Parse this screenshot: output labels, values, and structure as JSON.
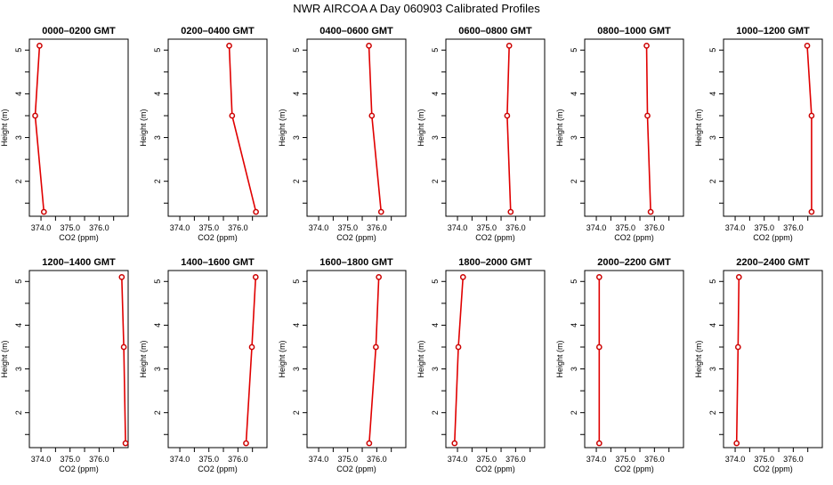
{
  "title": "NWR AIRCOA A  Day 060903  Calibrated Profiles",
  "chart_data": [
    {
      "type": "line",
      "title": "0000–0200 GMT",
      "xlabel": "CO2 (ppm)",
      "ylabel": "Height (m)",
      "xlim": [
        373.6,
        377.0
      ],
      "ylim": [
        1.2,
        5.25
      ],
      "xticks": [
        "374.0",
        "375.0",
        "376.0"
      ],
      "yticks": [
        "2",
        "3",
        "4",
        "5"
      ],
      "series": [
        {
          "x": [
            374.1,
            373.8,
            373.95
          ],
          "y": [
            1.3,
            3.5,
            5.1
          ]
        }
      ]
    },
    {
      "type": "line",
      "title": "0200–0400 GMT",
      "xlabel": "CO2 (ppm)",
      "ylabel": "Height (m)",
      "xlim": [
        373.6,
        377.0
      ],
      "ylim": [
        1.2,
        5.25
      ],
      "xticks": [
        "374.0",
        "375.0",
        "376.0"
      ],
      "yticks": [
        "2",
        "3",
        "4",
        "5"
      ],
      "series": [
        {
          "x": [
            376.62,
            375.8,
            375.7
          ],
          "y": [
            1.3,
            3.5,
            5.1
          ]
        }
      ]
    },
    {
      "type": "line",
      "title": "0400–0600 GMT",
      "xlabel": "CO2 (ppm)",
      "ylabel": "Height (m)",
      "xlim": [
        373.6,
        377.0
      ],
      "ylim": [
        1.2,
        5.25
      ],
      "xticks": [
        "374.0",
        "375.0",
        "376.0"
      ],
      "yticks": [
        "2",
        "3",
        "4",
        "5"
      ],
      "series": [
        {
          "x": [
            376.15,
            375.83,
            375.73
          ],
          "y": [
            1.3,
            3.5,
            5.1
          ]
        }
      ]
    },
    {
      "type": "line",
      "title": "0600–0800 GMT",
      "xlabel": "CO2 (ppm)",
      "ylabel": "Height (m)",
      "xlim": [
        373.6,
        377.0
      ],
      "ylim": [
        1.2,
        5.25
      ],
      "xticks": [
        "374.0",
        "375.0",
        "376.0"
      ],
      "yticks": [
        "2",
        "3",
        "4",
        "5"
      ],
      "series": [
        {
          "x": [
            375.83,
            375.71,
            375.78
          ],
          "y": [
            1.3,
            3.5,
            5.1
          ]
        }
      ]
    },
    {
      "type": "line",
      "title": "0800–1000 GMT",
      "xlabel": "CO2 (ppm)",
      "ylabel": "Height (m)",
      "xlim": [
        373.6,
        377.0
      ],
      "ylim": [
        1.2,
        5.25
      ],
      "xticks": [
        "374.0",
        "375.0",
        "376.0"
      ],
      "yticks": [
        "2",
        "3",
        "4",
        "5"
      ],
      "series": [
        {
          "x": [
            375.87,
            375.76,
            375.73
          ],
          "y": [
            1.3,
            3.5,
            5.1
          ]
        }
      ]
    },
    {
      "type": "line",
      "title": "1000–1200 GMT",
      "xlabel": "CO2 (ppm)",
      "ylabel": "Height (m)",
      "xlim": [
        373.6,
        377.0
      ],
      "ylim": [
        1.2,
        5.25
      ],
      "xticks": [
        "374.0",
        "375.0",
        "376.0"
      ],
      "yticks": [
        "2",
        "3",
        "4",
        "5"
      ],
      "series": [
        {
          "x": [
            376.63,
            376.63,
            376.48
          ],
          "y": [
            1.3,
            3.5,
            5.1
          ]
        }
      ]
    },
    {
      "type": "line",
      "title": "1200–1400 GMT",
      "xlabel": "CO2 (ppm)",
      "ylabel": "Height (m)",
      "xlim": [
        373.6,
        377.0
      ],
      "ylim": [
        1.2,
        5.25
      ],
      "xticks": [
        "374.0",
        "375.0",
        "376.0"
      ],
      "yticks": [
        "2",
        "3",
        "4",
        "5"
      ],
      "series": [
        {
          "x": [
            376.91,
            376.85,
            376.78
          ],
          "y": [
            1.3,
            3.5,
            5.1
          ]
        }
      ]
    },
    {
      "type": "line",
      "title": "1400–1600 GMT",
      "xlabel": "CO2 (ppm)",
      "ylabel": "Height (m)",
      "xlim": [
        373.6,
        377.0
      ],
      "ylim": [
        1.2,
        5.25
      ],
      "xticks": [
        "374.0",
        "375.0",
        "376.0"
      ],
      "yticks": [
        "2",
        "3",
        "4",
        "5"
      ],
      "series": [
        {
          "x": [
            376.28,
            376.48,
            376.61
          ],
          "y": [
            1.3,
            3.5,
            5.1
          ]
        }
      ]
    },
    {
      "type": "line",
      "title": "1600–1800 GMT",
      "xlabel": "CO2 (ppm)",
      "ylabel": "Height (m)",
      "xlim": [
        373.6,
        377.0
      ],
      "ylim": [
        1.2,
        5.25
      ],
      "xticks": [
        "374.0",
        "375.0",
        "376.0"
      ],
      "yticks": [
        "2",
        "3",
        "4",
        "5"
      ],
      "series": [
        {
          "x": [
            375.74,
            375.97,
            376.07
          ],
          "y": [
            1.3,
            3.5,
            5.1
          ]
        }
      ]
    },
    {
      "type": "line",
      "title": "1800–2000 GMT",
      "xlabel": "CO2 (ppm)",
      "ylabel": "Height (m)",
      "xlim": [
        373.6,
        377.0
      ],
      "ylim": [
        1.2,
        5.25
      ],
      "xticks": [
        "374.0",
        "375.0",
        "376.0"
      ],
      "yticks": [
        "2",
        "3",
        "4",
        "5"
      ],
      "series": [
        {
          "x": [
            373.9,
            374.03,
            374.19
          ],
          "y": [
            1.3,
            3.5,
            5.1
          ]
        }
      ]
    },
    {
      "type": "line",
      "title": "2000–2200 GMT",
      "xlabel": "CO2 (ppm)",
      "ylabel": "Height (m)",
      "xlim": [
        373.6,
        377.0
      ],
      "ylim": [
        1.2,
        5.25
      ],
      "xticks": [
        "374.0",
        "375.0",
        "376.0"
      ],
      "yticks": [
        "2",
        "3",
        "4",
        "5"
      ],
      "series": [
        {
          "x": [
            374.1,
            374.1,
            374.1
          ],
          "y": [
            1.3,
            3.5,
            5.1
          ]
        }
      ]
    },
    {
      "type": "line",
      "title": "2200–2400 GMT",
      "xlabel": "CO2 (ppm)",
      "ylabel": "Height (m)",
      "xlim": [
        373.6,
        377.0
      ],
      "ylim": [
        1.2,
        5.25
      ],
      "xticks": [
        "374.0",
        "375.0",
        "376.0"
      ],
      "yticks": [
        "2",
        "3",
        "4",
        "5"
      ],
      "series": [
        {
          "x": [
            374.05,
            374.1,
            374.13
          ],
          "y": [
            1.3,
            3.5,
            5.1
          ]
        }
      ]
    }
  ],
  "colors": {
    "series_line": "#e00000",
    "series_point": "#cc0000",
    "axis": "#000000",
    "background": "#ffffff"
  }
}
